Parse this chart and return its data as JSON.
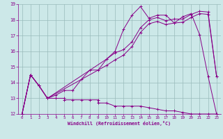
{
  "xlabel": "Windchill (Refroidissement éolien,°C)",
  "background_color": "#cce8e8",
  "line_color": "#880088",
  "grid_color": "#99bbbb",
  "xlim": [
    -0.5,
    23.5
  ],
  "ylim": [
    12,
    19
  ],
  "xticks": [
    0,
    1,
    2,
    3,
    4,
    5,
    6,
    7,
    8,
    9,
    10,
    11,
    12,
    13,
    14,
    15,
    16,
    17,
    18,
    19,
    20,
    21,
    22,
    23
  ],
  "yticks": [
    12,
    13,
    14,
    15,
    16,
    17,
    18,
    19
  ],
  "line1_x": [
    0,
    1,
    2,
    3,
    4,
    5,
    6,
    7,
    8,
    9,
    10,
    11,
    12,
    13,
    14,
    15,
    16,
    17,
    18,
    19,
    20,
    21,
    22,
    23
  ],
  "line1_y": [
    12,
    14.5,
    13.8,
    13.0,
    13.2,
    13.5,
    13.5,
    14.2,
    14.8,
    14.8,
    15.5,
    16.0,
    17.4,
    18.3,
    18.85,
    18.1,
    18.3,
    18.3,
    17.8,
    18.2,
    18.4,
    17.05,
    14.4,
    12.0
  ],
  "line2_x": [
    0,
    1,
    2,
    3,
    4,
    5,
    5,
    6,
    7,
    8,
    9,
    9,
    10,
    11,
    12,
    13,
    14,
    15,
    16,
    17,
    18,
    19,
    20,
    21,
    22,
    23
  ],
  "line2_y": [
    12,
    14.5,
    13.8,
    13.0,
    13.0,
    13.0,
    12.9,
    12.9,
    12.9,
    12.9,
    12.9,
    12.7,
    12.7,
    12.5,
    12.5,
    12.5,
    12.5,
    12.4,
    12.3,
    12.2,
    12.2,
    12.1,
    12.0,
    12.0,
    12.0,
    12.0
  ],
  "line3_x": [
    0,
    1,
    2,
    3,
    10,
    11,
    12,
    13,
    14,
    15,
    16,
    17,
    18,
    19,
    20,
    21,
    22,
    23
  ],
  "line3_y": [
    12,
    14.5,
    13.8,
    13.0,
    15.5,
    15.9,
    16.1,
    16.6,
    17.5,
    18.0,
    18.15,
    17.95,
    18.05,
    18.05,
    18.35,
    18.55,
    18.5,
    14.4
  ],
  "line4_x": [
    0,
    1,
    2,
    3,
    10,
    11,
    12,
    13,
    14,
    15,
    16,
    17,
    18,
    19,
    20,
    21,
    22,
    23
  ],
  "line4_y": [
    12,
    14.5,
    13.8,
    13.0,
    15.1,
    15.45,
    15.75,
    16.3,
    17.2,
    17.75,
    17.9,
    17.7,
    17.8,
    17.85,
    18.15,
    18.4,
    18.35,
    14.4
  ]
}
